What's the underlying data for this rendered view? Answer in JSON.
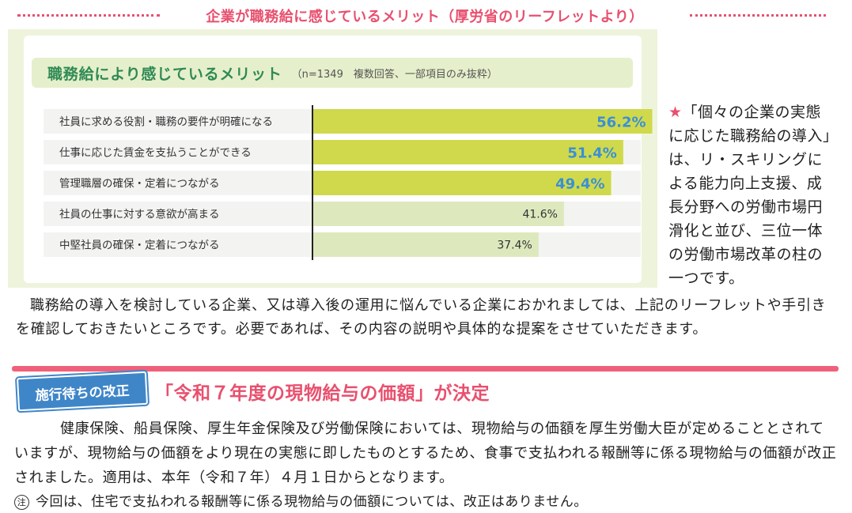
{
  "header": {
    "title": "企業が職務給に感じているメリット（厚労省のリーフレットより）"
  },
  "chart_data": {
    "type": "bar",
    "orientation": "horizontal",
    "title": "職務給により感じているメリット",
    "note": "（n=1349　複数回答、一部項目のみ抜粋）",
    "categories": [
      "社員に求める役割・職務の要件が明確になる",
      "仕事に応じた賃金を支払うことができる",
      "管理職層の確保・定着につながる",
      "社員の仕事に対する意欲が高まる",
      "中堅社員の確保・定着につながる"
    ],
    "values": [
      56.2,
      51.4,
      49.4,
      41.6,
      37.4
    ],
    "labels": [
      "56.2%",
      "51.4%",
      "49.4%",
      "41.6%",
      "37.4%"
    ],
    "highlighted": [
      true,
      true,
      true,
      false,
      false
    ],
    "xlim": [
      0,
      70
    ],
    "colors": {
      "highlight_bar": "#cfd94b",
      "normal_bar": "#dde9bd",
      "highlight_label": "#3a8fd6",
      "normal_label": "#333333",
      "row_band": "#f3f4f2"
    }
  },
  "side_note": {
    "star": "★",
    "text": "「個々の企業の実態に応じた職務給の導入」は、リ・スキリングによる能力向上支援、成長分野への労働市場円滑化と並び、三位一体の労働市場改革の柱の一つです。"
  },
  "paragraph1": "職務給の導入を検討している企業、又は導入後の運用に悩んでいる企業におかれましては、上記のリーフレットや手引きを確認しておきたいところです。必要であれば、その内容の説明や具体的な提案をさせていただきます。",
  "section": {
    "badge": "施行待ちの改正",
    "title": "「令和７年度の現物給与の価額」が決定",
    "body": "健康保険、船員保険、厚生年金保険及び労働保険においては、現物給与の価額を厚生労働大臣が定めることとされていますが、現物給与の価額をより現在の実態に即したものとするため、食事で支払われる報酬等に係る現物給与の価額が改正されました。適用は、本年（令和７年）４月１日からとなります。",
    "note_mark": "注",
    "note": "今回は、住宅で支払われる報酬等に係る現物給与の価額については、改正はありません。"
  }
}
